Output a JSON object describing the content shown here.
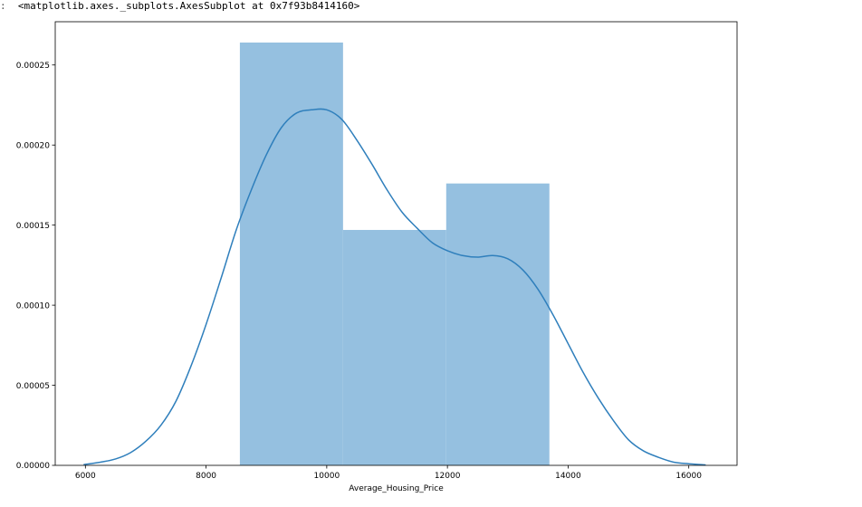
{
  "output": {
    "prompt": ":",
    "repr": "<matplotlib.axes._subplots.AxesSubplot at 0x7f93b8414160>"
  },
  "colors": {
    "bar_fill": "#95c0e0",
    "kde_line": "#2f7fbc",
    "axes_edge": "#000000"
  },
  "chart_data": {
    "type": "bar",
    "xlabel": "Average_Housing_Price",
    "ylabel": "",
    "xlim": [
      5500,
      16800
    ],
    "ylim": [
      0,
      0.000277
    ],
    "xticks": [
      6000,
      8000,
      10000,
      12000,
      14000,
      16000
    ],
    "xtick_labels": [
      "6000",
      "8000",
      "10000",
      "12000",
      "14000",
      "16000"
    ],
    "yticks": [
      0,
      5e-05,
      0.0001,
      0.00015,
      0.0002,
      0.00025
    ],
    "ytick_labels": [
      "0.00000",
      "0.00005",
      "0.00010",
      "0.00015",
      "0.00020",
      "0.00025"
    ],
    "grid": false,
    "bars": [
      {
        "x0": 8560,
        "x1": 10270,
        "height": 0.000264
      },
      {
        "x0": 10270,
        "x1": 11980,
        "height": 0.000147
      },
      {
        "x0": 11980,
        "x1": 13690,
        "height": 0.000176
      }
    ],
    "kde": {
      "x": [
        5970,
        6250,
        6500,
        6750,
        7000,
        7250,
        7500,
        7750,
        8000,
        8250,
        8500,
        8750,
        9000,
        9250,
        9500,
        9750,
        10000,
        10250,
        10500,
        10750,
        11000,
        11250,
        11500,
        11750,
        12000,
        12250,
        12500,
        12750,
        13000,
        13250,
        13500,
        13750,
        14000,
        14250,
        14500,
        14750,
        15000,
        15250,
        15500,
        15750,
        16000,
        16280
      ],
      "y": [
        5e-07,
        2e-06,
        4e-06,
        8e-06,
        1.5e-05,
        2.5e-05,
        4e-05,
        6.2e-05,
        8.8e-05,
        0.000117,
        0.000147,
        0.000172,
        0.000194,
        0.000211,
        0.00022,
        0.000222,
        0.000222,
        0.000216,
        0.000203,
        0.000188,
        0.000172,
        0.000158,
        0.000148,
        0.000139,
        0.000134,
        0.000131,
        0.00013,
        0.000131,
        0.000129,
        0.000122,
        0.00011,
        9.4e-05,
        7.6e-05,
        5.8e-05,
        4.2e-05,
        2.8e-05,
        1.6e-05,
        9e-06,
        5e-06,
        2e-06,
        1e-06,
        3e-07
      ]
    }
  }
}
